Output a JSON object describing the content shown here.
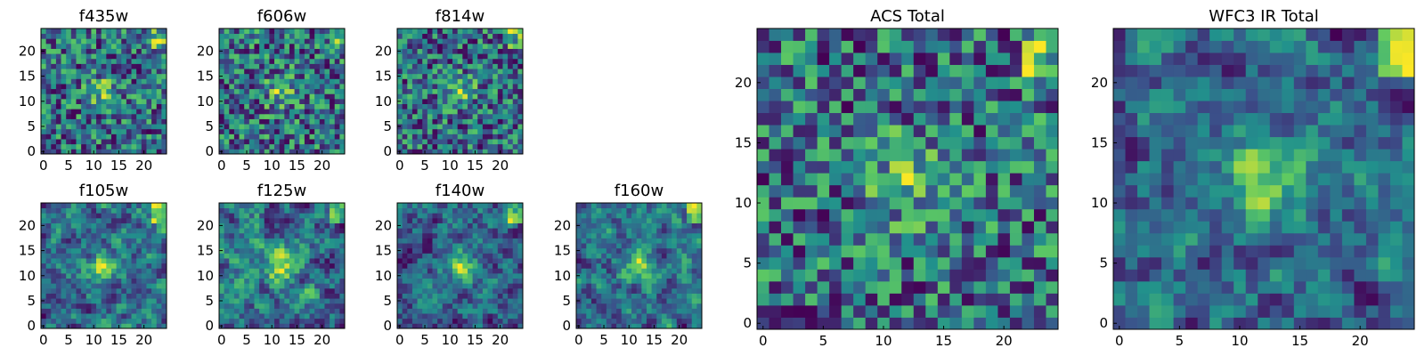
{
  "colormap": [
    "#440154",
    "#3b528b",
    "#21918c",
    "#5ec962",
    "#fde725"
  ],
  "chart_data": [
    {
      "type": "heatmap",
      "title": "f435w",
      "xlim": [
        0,
        24
      ],
      "ylim": [
        0,
        24
      ],
      "xticks": [
        0,
        5,
        10,
        15,
        20
      ],
      "yticks": [
        0,
        5,
        10,
        15,
        20
      ],
      "grid_size": 25,
      "seed": 11,
      "style": "noise",
      "brightness": 0.58
    },
    {
      "type": "heatmap",
      "title": "f606w",
      "xlim": [
        0,
        24
      ],
      "ylim": [
        0,
        24
      ],
      "xticks": [
        0,
        5,
        10,
        15,
        20
      ],
      "yticks": [
        0,
        5,
        10,
        15,
        20
      ],
      "grid_size": 25,
      "seed": 23,
      "style": "noise",
      "brightness": 0.52
    },
    {
      "type": "heatmap",
      "title": "f814w",
      "xlim": [
        0,
        24
      ],
      "ylim": [
        0,
        24
      ],
      "xticks": [
        0,
        5,
        10,
        15,
        20
      ],
      "yticks": [
        0,
        5,
        10,
        15,
        20
      ],
      "grid_size": 25,
      "seed": 37,
      "style": "noise",
      "brightness": 0.52
    },
    {
      "type": "heatmap",
      "title": "f105w",
      "xlim": [
        0,
        24
      ],
      "ylim": [
        0,
        24
      ],
      "xticks": [
        0,
        5,
        10,
        15,
        20
      ],
      "yticks": [
        0,
        5,
        10,
        15,
        20
      ],
      "grid_size": 25,
      "seed": 41,
      "style": "smooth",
      "brightness": 0.45
    },
    {
      "type": "heatmap",
      "title": "f125w",
      "xlim": [
        0,
        24
      ],
      "ylim": [
        0,
        24
      ],
      "xticks": [
        0,
        5,
        10,
        15,
        20
      ],
      "yticks": [
        0,
        5,
        10,
        15,
        20
      ],
      "grid_size": 25,
      "seed": 53,
      "style": "smooth",
      "brightness": 0.52
    },
    {
      "type": "heatmap",
      "title": "f140w",
      "xlim": [
        0,
        24
      ],
      "ylim": [
        0,
        24
      ],
      "xticks": [
        0,
        5,
        10,
        15,
        20
      ],
      "yticks": [
        0,
        5,
        10,
        15,
        20
      ],
      "grid_size": 25,
      "seed": 67,
      "style": "smooth",
      "brightness": 0.5
    },
    {
      "type": "heatmap",
      "title": "f160w",
      "xlim": [
        0,
        24
      ],
      "ylim": [
        0,
        24
      ],
      "xticks": [
        0,
        5,
        10,
        15,
        20
      ],
      "yticks": [
        0,
        5,
        10,
        15,
        20
      ],
      "grid_size": 25,
      "seed": 79,
      "style": "smooth",
      "brightness": 0.45
    },
    {
      "type": "heatmap",
      "title": "ACS Total",
      "xlim": [
        0,
        24
      ],
      "ylim": [
        0,
        24
      ],
      "xticks": [
        0,
        5,
        10,
        15,
        20
      ],
      "yticks": [
        0,
        5,
        10,
        15,
        20
      ],
      "grid_size": 25,
      "seed": 97,
      "style": "noise",
      "brightness": 0.6
    },
    {
      "type": "heatmap",
      "title": "WFC3 IR Total",
      "xlim": [
        0,
        24
      ],
      "ylim": [
        0,
        24
      ],
      "xticks": [
        0,
        5,
        10,
        15,
        20
      ],
      "yticks": [
        0,
        5,
        10,
        15,
        20
      ],
      "grid_size": 25,
      "seed": 113,
      "style": "smooth",
      "brightness": 0.48
    }
  ]
}
